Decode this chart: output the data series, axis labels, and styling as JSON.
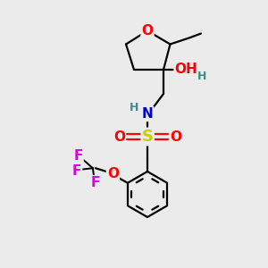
{
  "bg_color": "#ebebeb",
  "atom_colors": {
    "O": "#ff0000",
    "N": "#0000cc",
    "S": "#cccc00",
    "F": "#dd00dd",
    "C": "#000000",
    "H_label": "#448888"
  },
  "bond_color": "#000000",
  "bond_width": 1.6,
  "font_size_atoms": 11,
  "font_size_small": 9,
  "xlim": [
    0,
    10
  ],
  "ylim": [
    0,
    10
  ]
}
